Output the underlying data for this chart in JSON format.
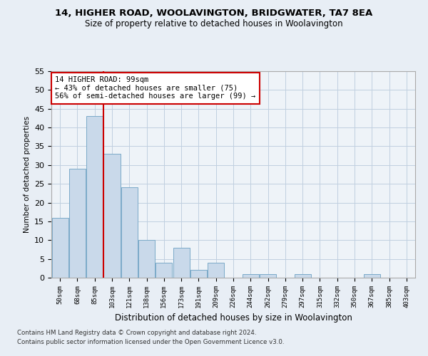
{
  "title": "14, HIGHER ROAD, WOOLAVINGTON, BRIDGWATER, TA7 8EA",
  "subtitle": "Size of property relative to detached houses in Woolavington",
  "xlabel": "Distribution of detached houses by size in Woolavington",
  "ylabel": "Number of detached properties",
  "footnote1": "Contains HM Land Registry data © Crown copyright and database right 2024.",
  "footnote2": "Contains public sector information licensed under the Open Government Licence v3.0.",
  "bar_labels": [
    "50sqm",
    "68sqm",
    "85sqm",
    "103sqm",
    "121sqm",
    "138sqm",
    "156sqm",
    "173sqm",
    "191sqm",
    "209sqm",
    "226sqm",
    "244sqm",
    "262sqm",
    "279sqm",
    "297sqm",
    "315sqm",
    "332sqm",
    "350sqm",
    "367sqm",
    "385sqm",
    "403sqm"
  ],
  "bar_values": [
    16,
    29,
    43,
    33,
    24,
    10,
    4,
    8,
    2,
    4,
    0,
    1,
    1,
    0,
    1,
    0,
    0,
    0,
    1,
    0,
    0
  ],
  "bar_color": "#c9d9ea",
  "bar_edge_color": "#7aaac8",
  "vline_x": 2.5,
  "vline_color": "#cc0000",
  "annotation_text": "14 HIGHER ROAD: 99sqm\n← 43% of detached houses are smaller (75)\n56% of semi-detached houses are larger (99) →",
  "annotation_box_color": "#cc0000",
  "ylim": [
    0,
    55
  ],
  "yticks": [
    0,
    5,
    10,
    15,
    20,
    25,
    30,
    35,
    40,
    45,
    50,
    55
  ],
  "bg_color": "#e8eef5",
  "plot_bg_color": "#eef3f8",
  "grid_color": "#c0cfe0"
}
